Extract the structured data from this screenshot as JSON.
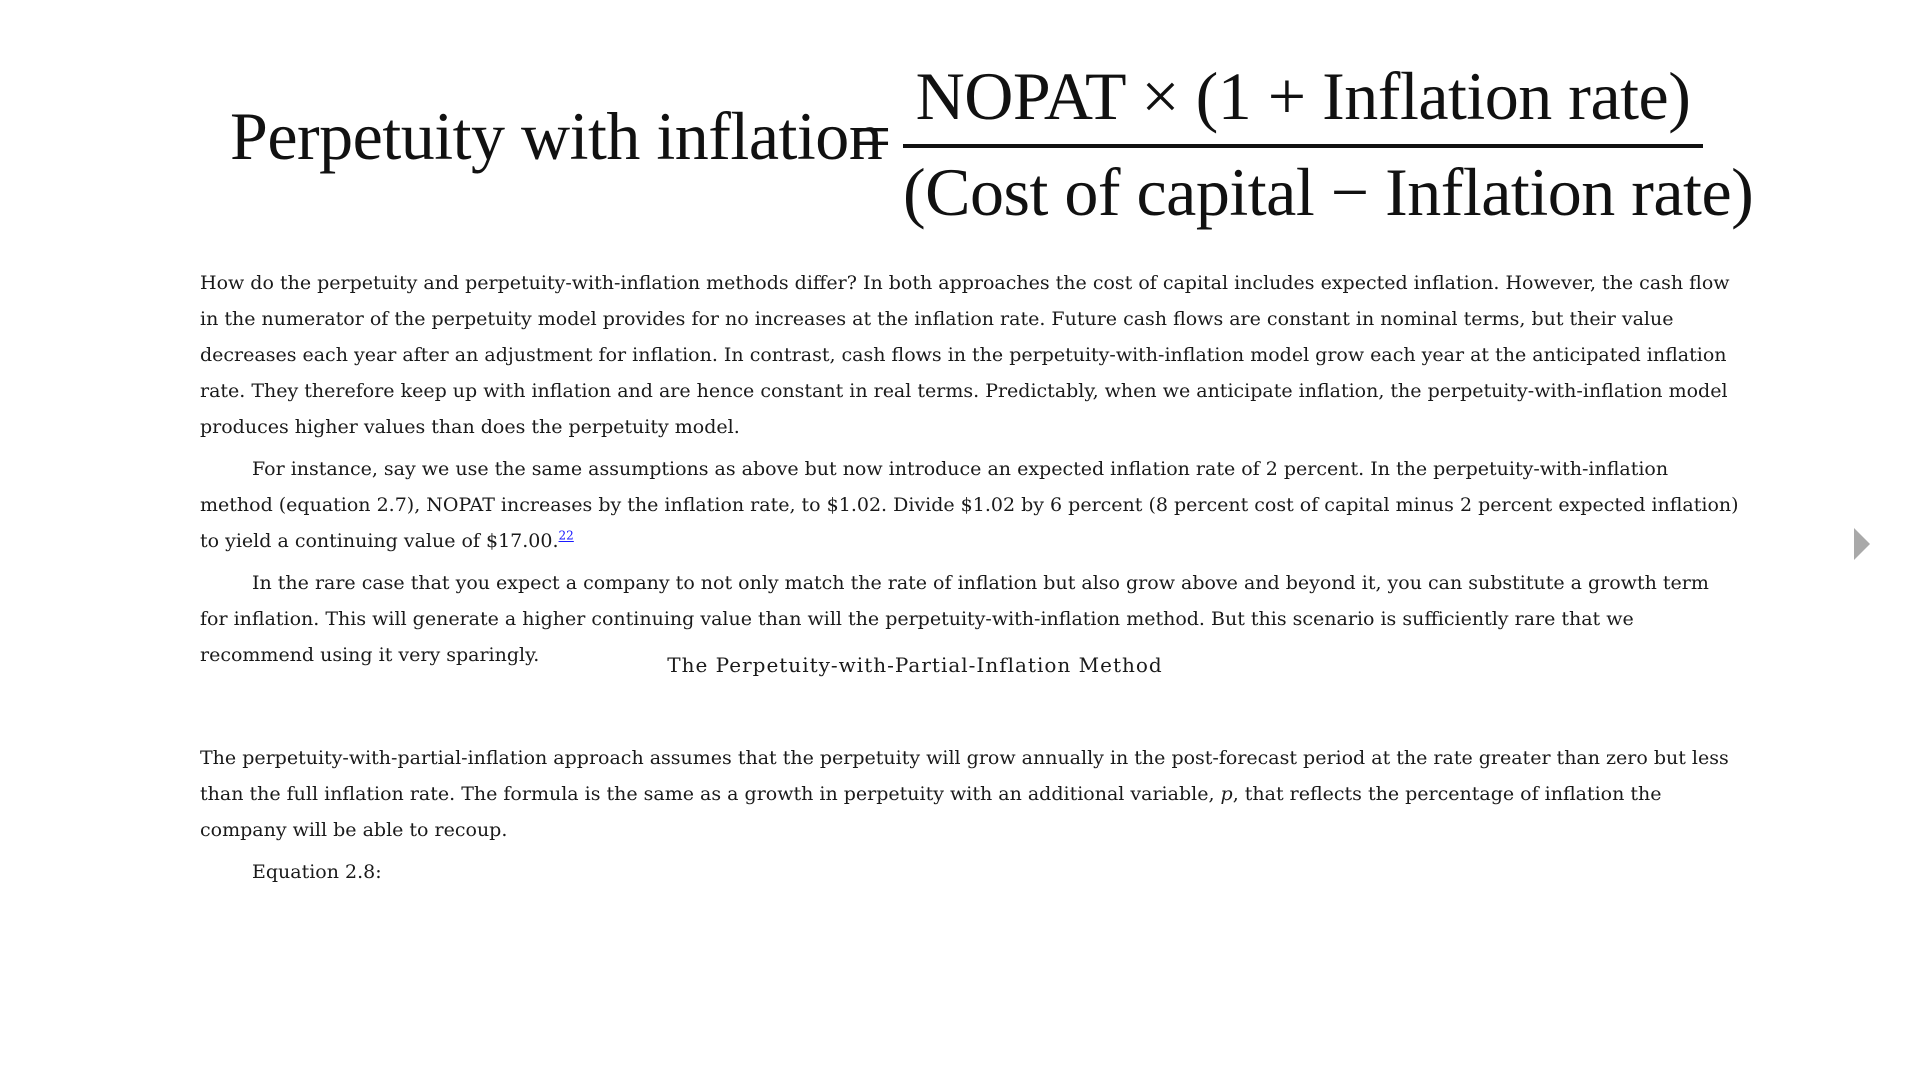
{
  "equation": {
    "lhs": "Perpetuity with inflation",
    "equals": "=",
    "numerator": "NOPAT × (1 + Inflation rate)",
    "denominator": "(Cost of capital − Inflation rate)"
  },
  "paragraphs": [
    {
      "text": "How do the perpetuity and perpetuity-with-inflation methods differ? In both approaches the cost of capital includes expected inflation. However, the cash flow in the numerator of the perpetuity model provides for no increases at the inflation rate. Future cash flows are constant in nominal terms, but their value decreases each year after an adjustment for inflation. In contrast, cash flows in the perpetuity-with-inflation model grow each year at the anticipated inflation rate. They therefore keep up with inflation and are hence con­stant in real terms. Predictably, when we anticipate inflation, the perpetuity-with-inflation model produces higher values than does the perpetuity model."
    },
    {
      "text": "For instance, say we use the same assumptions as above but now introduce an expected inflation rate of 2 percent. In the perpetuity-with-inflation method (equation 2.7), NOPAT increases by the inflation rate, to $1.02. Divide $1.02 by 6 percent (8 percent cost of capital minus 2 percent expected inflation) to yield a continuing value of $17.00.",
      "footnote": "22"
    },
    {
      "text": "In the rare case that you expect a company to not only match the rate of inflation but also grow above and beyond it, you can substitute a growth term for inflation. This will generate a higher continuing value than will the perpetuity-with-inflation method. But this scenario is sufficiently rare that we recommend using it very sparingly."
    }
  ],
  "section_heading": "The Perpetuity-with-Partial-Inflation Method",
  "section_paragraphs": [
    {
      "text_before": "The perpetuity-with-partial-inflation approach assumes that the perpetuity will grow annually in the post-forecast period at the rate greater than zero but less than the full infla­tion rate. The formula is the same as a growth in perpetuity with an additional variable, ",
      "variable": "p",
      "text_after": ", that reflects the percentage of inflation the company will be able to recoup."
    },
    {
      "text": "Equation 2.8:"
    }
  ],
  "navigation": {
    "next_icon": "next-page-arrow-icon"
  }
}
